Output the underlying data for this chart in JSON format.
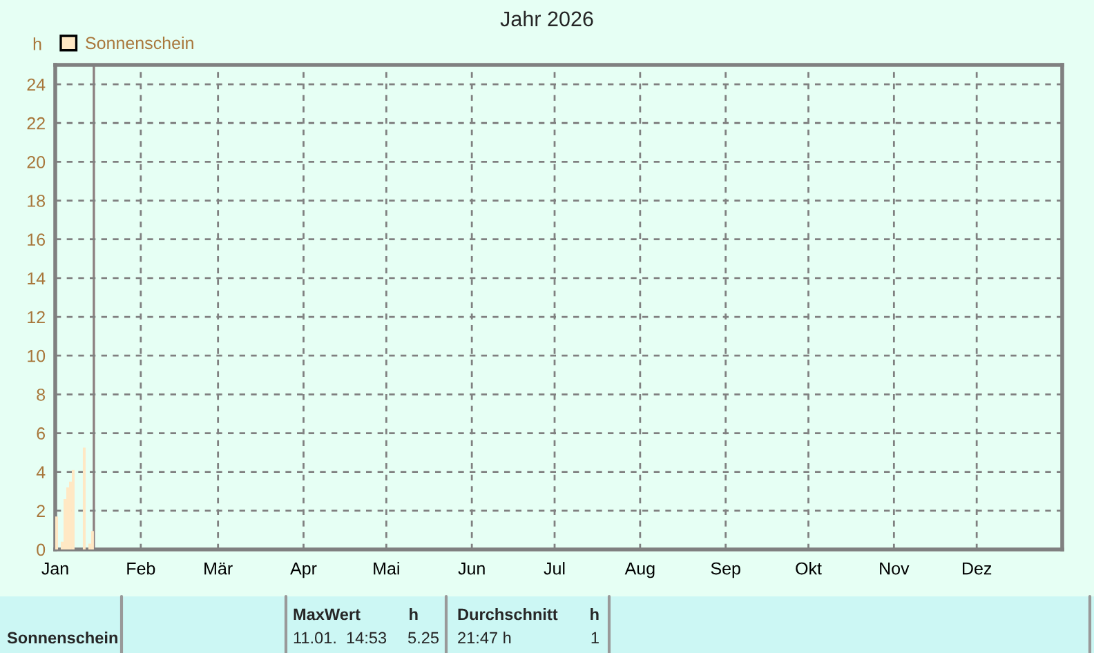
{
  "chart_data": {
    "type": "bar",
    "title": "Jahr 2026",
    "ylabel": "h",
    "x": [
      "2026-01-01",
      "2026-01-02",
      "2026-01-03",
      "2026-01-04",
      "2026-01-05",
      "2026-01-06",
      "2026-01-07",
      "2026-01-08",
      "2026-01-09",
      "2026-01-10",
      "2026-01-11",
      "2026-01-12",
      "2026-01-13",
      "2026-01-14"
    ],
    "series": [
      {
        "name": "Sonnenschein",
        "color": "#ffe8c4",
        "values": [
          1.7,
          0,
          0.4,
          2.6,
          3.2,
          3.5,
          4.1,
          0,
          0,
          0,
          5.25,
          0,
          0.3,
          0.95
        ]
      }
    ],
    "xlim": [
      "2026-01-01",
      "2027-01-01"
    ],
    "xticks": [
      {
        "value": "2026-01-01",
        "label": "Jan"
      },
      {
        "value": "2026-02-01",
        "label": "Feb"
      },
      {
        "value": "2026-03-01",
        "label": "Mär"
      },
      {
        "value": "2026-04-01",
        "label": "Apr"
      },
      {
        "value": "2026-05-01",
        "label": "Mai"
      },
      {
        "value": "2026-06-01",
        "label": "Jun"
      },
      {
        "value": "2026-07-01",
        "label": "Jul"
      },
      {
        "value": "2026-08-01",
        "label": "Aug"
      },
      {
        "value": "2026-09-01",
        "label": "Sep"
      },
      {
        "value": "2026-10-01",
        "label": "Okt"
      },
      {
        "value": "2026-11-01",
        "label": "Nov"
      },
      {
        "value": "2026-12-01",
        "label": "Dez"
      }
    ],
    "ylim": [
      0,
      25
    ],
    "yticks": [
      0,
      2,
      4,
      6,
      8,
      10,
      12,
      14,
      16,
      18,
      20,
      22,
      24
    ],
    "grid": true,
    "legend": "top left",
    "ref_lines": [
      {
        "axis": "x",
        "value": "2026-01-15",
        "color": "#8c7f7f"
      }
    ],
    "annotations": [
      "Sonnenschein",
      "MaxWert",
      "h",
      "11.01.  14:53",
      "5.25",
      "Durchschnitt",
      "h",
      "21:47 h",
      "1"
    ]
  }
}
